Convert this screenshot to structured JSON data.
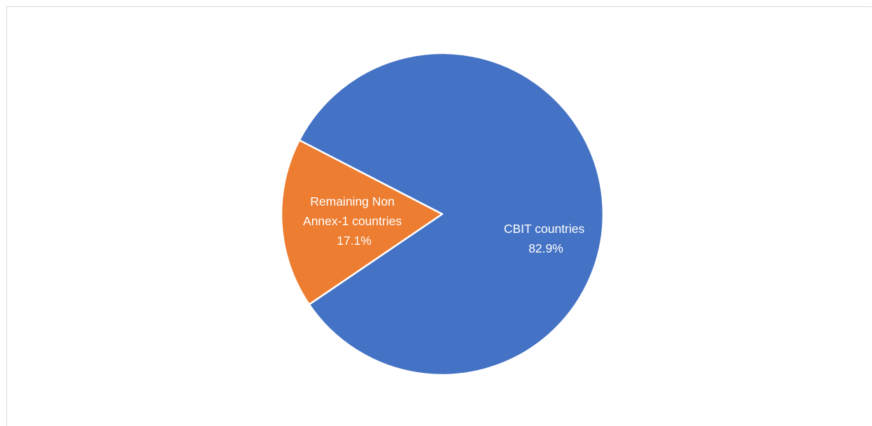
{
  "chart_data": {
    "type": "pie",
    "title": "",
    "slices": [
      {
        "label": "CBIT countries",
        "value": 82.9,
        "percent_label": "82.9%",
        "color": "#4472C4"
      },
      {
        "label": "Remaining Non Annex-1 countries",
        "value": 17.1,
        "percent_label": "17.1%",
        "color": "#ED7D31"
      }
    ],
    "legend": "none",
    "slice_border_color": "#FFFFFF"
  }
}
